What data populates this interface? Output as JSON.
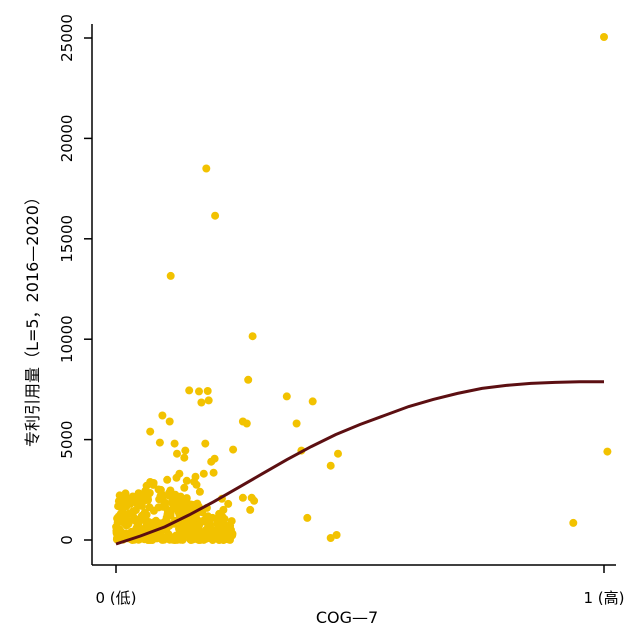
{
  "chart_data": {
    "type": "scatter",
    "xlabel": "COG—7",
    "ylabel": "专利引用量（L=5，2016—2020）",
    "xlim": [
      0,
      1
    ],
    "ylim": [
      0,
      25000
    ],
    "x_ticks": [
      {
        "value": 0,
        "label": "0 (低)"
      },
      {
        "value": 1,
        "label": "1 (高)"
      }
    ],
    "y_ticks": [
      {
        "value": 0,
        "label": "0"
      },
      {
        "value": 5000,
        "label": "5000"
      },
      {
        "value": 10000,
        "label": "10000"
      },
      {
        "value": 15000,
        "label": "15000"
      },
      {
        "value": 20000,
        "label": "20000"
      },
      {
        "value": 25000,
        "label": "25000"
      }
    ],
    "grid": false,
    "colors": {
      "points": "#f2c200",
      "fit_line": "#5c0f12",
      "axis": "#000000"
    },
    "series": [
      {
        "kind": "points",
        "x": [
          1.0,
          0.185,
          0.203,
          0.112,
          0.28,
          0.271,
          0.15,
          0.188,
          0.19,
          0.175,
          0.17,
          0.095,
          0.11,
          0.26,
          0.35,
          0.37,
          0.403,
          0.268,
          0.24,
          0.12,
          0.183,
          0.202,
          0.195,
          0.09,
          0.142,
          0.125,
          0.14,
          0.38,
          0.44,
          0.455,
          1.007,
          0.2,
          0.163,
          0.145,
          0.18,
          0.16,
          0.165,
          0.14,
          0.105,
          0.124,
          0.13,
          0.172,
          0.217,
          0.23,
          0.278,
          0.283,
          0.275,
          0.26,
          0.22,
          0.198,
          0.21,
          0.155,
          0.07,
          0.392,
          0.937,
          0.452,
          0.44
        ],
        "y": [
          25050,
          18500,
          16150,
          13150,
          10150,
          7980,
          7450,
          7420,
          6950,
          6850,
          7400,
          6200,
          5900,
          5900,
          7150,
          5800,
          6900,
          5800,
          4500,
          4800,
          4800,
          4050,
          3900,
          4850,
          4450,
          4300,
          4100,
          4450,
          3700,
          4300,
          4400,
          3350,
          3150,
          2950,
          3300,
          2900,
          2750,
          2600,
          3000,
          3100,
          3300,
          2400,
          2050,
          1800,
          2100,
          1950,
          1500,
          2100,
          1500,
          1100,
          800,
          900,
          5400,
          1100,
          850,
          250,
          100
        ]
      },
      {
        "kind": "cluster",
        "count": 400,
        "x_range": [
          0.0,
          0.24
        ],
        "y_range": [
          0,
          3000
        ]
      },
      {
        "kind": "fit_line",
        "x": [
          0.0,
          0.05,
          0.1,
          0.15,
          0.2,
          0.25,
          0.3,
          0.35,
          0.4,
          0.45,
          0.5,
          0.55,
          0.6,
          0.65,
          0.7,
          0.75,
          0.8,
          0.85,
          0.9,
          0.95,
          1.0
        ],
        "y": [
          -200,
          200,
          650,
          1250,
          1900,
          2600,
          3300,
          4000,
          4650,
          5250,
          5750,
          6200,
          6650,
          7000,
          7300,
          7550,
          7700,
          7800,
          7850,
          7880,
          7880
        ]
      }
    ]
  }
}
